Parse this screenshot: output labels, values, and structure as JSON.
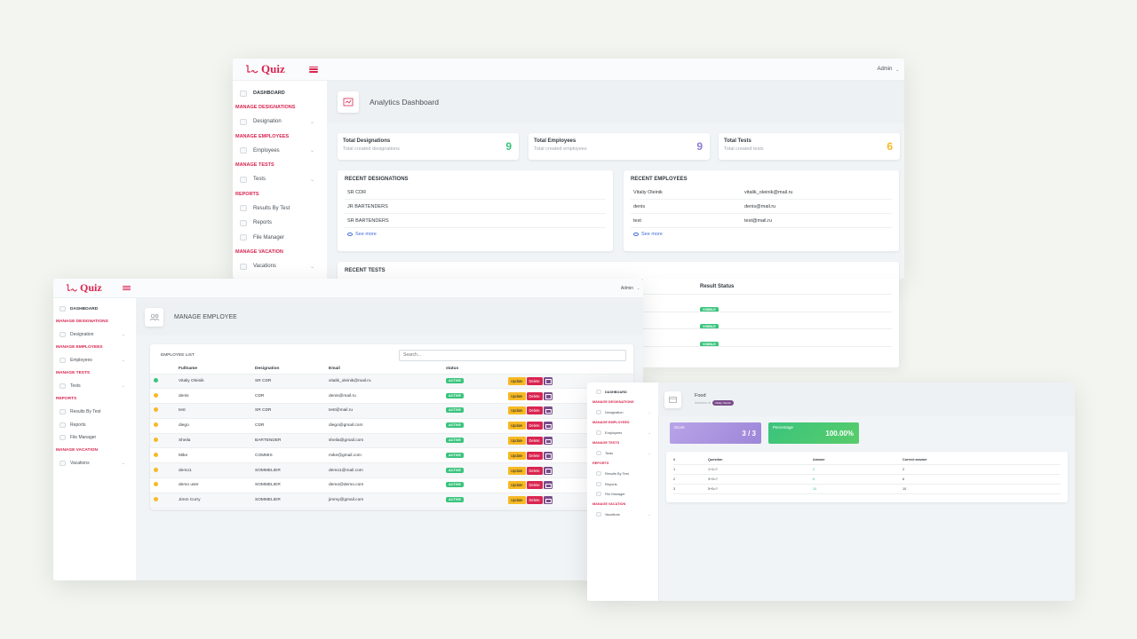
{
  "logo_text": "Quiz",
  "user_menu": "Admin",
  "icons": {
    "menu": "hamburger-icon",
    "chevron": "chevron-down-icon",
    "page": "dashboard-icon",
    "eye": "eye-icon",
    "mail": "mail-icon"
  },
  "colors": {
    "brand": "#d92550",
    "success": "#3ac47d",
    "primary": "#3f6ad8",
    "warning": "#f7b924",
    "info": "#794c8a"
  },
  "sidebar": {
    "dashboard": "DASHBOARD",
    "manage_designations": "MANAGE DESIGNATIONS",
    "designation": "Designation",
    "manage_employees": "MANAGE EMPLOYEES",
    "employees": "Employees",
    "manage_tests": "MANAGE TESTS",
    "tests": "Tests",
    "reports_head": "REPORTS",
    "results_by_test": "Results By Test",
    "reports": "Reports",
    "file_manager": "File Manager",
    "manage_vacation": "MANAGE VACATION",
    "vacations": "Vacations"
  },
  "dashboard": {
    "title": "Analytics Dashboard",
    "stats": [
      {
        "label": "Total Designations",
        "sub": "Total created designations",
        "value": "9",
        "color": "#3ac47d"
      },
      {
        "label": "Total Employees",
        "sub": "Total created employees",
        "value": "9",
        "color": "#8b7bd8"
      },
      {
        "label": "Total Tests",
        "sub": "Total created tests",
        "value": "6",
        "color": "#f7b924"
      }
    ],
    "recent_designations": {
      "title": "RECENT DESIGNATIONS",
      "items": [
        "SR CDR",
        "JR BARTENDERS",
        "SR BARTENDERS"
      ],
      "see_more": "See more"
    },
    "recent_employees": {
      "title": "RECENT EMPLOYEES",
      "items": [
        {
          "name": "Vitaliy Oleinik",
          "email": "vitalik_oleinik@mail.ru"
        },
        {
          "name": "denis",
          "email": "denis@mail.ru"
        },
        {
          "name": "test",
          "email": "test@mail.ru"
        }
      ],
      "see_more": "See more"
    },
    "recent_tests": {
      "title": "RECENT TESTS",
      "column": "Result Status",
      "statuses": [
        "VISIBLE",
        "VISIBLE",
        "VISIBLE"
      ]
    }
  },
  "employees": {
    "title": "MANAGE EMPLOYEE",
    "list_title": "EMPLOYEE LIST",
    "search_placeholder": "Search...",
    "columns": {
      "fullname": "Fullname",
      "designation": "Designation",
      "email": "Email",
      "status": "status"
    },
    "actions": {
      "update": "Update",
      "delete": "Delete"
    },
    "rows": [
      {
        "name": "Vitaliy Oleinik",
        "designation": "SR CDR",
        "email": "vitalik_oleinik@mail.ru",
        "status": "ACTIVE",
        "icon_color": "#3ac47d"
      },
      {
        "name": "denis",
        "designation": "CDR",
        "email": "denis@mail.ru",
        "status": "ACTIVE",
        "icon_color": "#f7b924"
      },
      {
        "name": "test",
        "designation": "SR CDR",
        "email": "test@mail.ru",
        "status": "ACTIVE",
        "icon_color": "#f7b924"
      },
      {
        "name": "diego",
        "designation": "CDR",
        "email": "diego@gmail.com",
        "status": "ACTIVE",
        "icon_color": "#f7b924"
      },
      {
        "name": "Sheila",
        "designation": "BARTENDER",
        "email": "sheila@gmail.com",
        "status": "ACTIVE",
        "icon_color": "#f7b924"
      },
      {
        "name": "Mike",
        "designation": "COMMIS",
        "email": "mike@gmail.com",
        "status": "ACTIVE",
        "icon_color": "#f7b924"
      },
      {
        "name": "demo1",
        "designation": "SOMMELIER",
        "email": "demo1@mail.com",
        "status": "ACTIVE",
        "icon_color": "#f7b924"
      },
      {
        "name": "demo user",
        "designation": "SOMMELIER",
        "email": "demo@demo.com",
        "status": "ACTIVE",
        "icon_color": "#f7b924"
      },
      {
        "name": "Jimm Curry",
        "designation": "SOMMELIER",
        "email": "jimmy@gmail.com",
        "status": "ACTIVE",
        "icon_color": "#f7b924"
      }
    ]
  },
  "result": {
    "title": "Food",
    "subtitle": "Answers of",
    "user_badge": "Vitaliy Oleinik",
    "score_label": "Score",
    "score_value": "3 / 3",
    "percentage_label": "Percentage",
    "percentage_value": "100.00%",
    "columns": {
      "num": "#",
      "question": "Question",
      "answer": "Answer",
      "correct": "Correct answer"
    },
    "rows": [
      {
        "num": "1",
        "question": "1+1=?",
        "answer": "2",
        "correct": "2"
      },
      {
        "num": "2",
        "question": "3+3=?",
        "answer": "6",
        "correct": "6"
      },
      {
        "num": "3",
        "question": "5+5=?",
        "answer": "10",
        "correct": "10"
      }
    ]
  }
}
